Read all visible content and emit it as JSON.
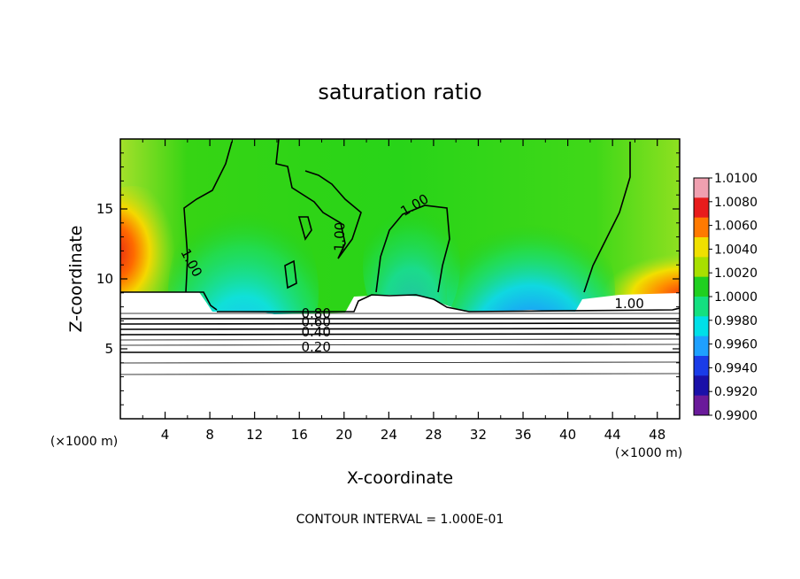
{
  "chart_data": {
    "type": "heatmap",
    "title": "saturation ratio",
    "xlabel": "X-coordinate",
    "ylabel": "Z-coordinate",
    "x_unit_left": "(×1000 m)",
    "x_unit_right": "(×1000 m)",
    "xlim": [
      0,
      50
    ],
    "ylim": [
      0,
      20
    ],
    "x_ticks": [
      4,
      8,
      12,
      16,
      20,
      24,
      28,
      32,
      36,
      40,
      44,
      48
    ],
    "x_tick_labels": [
      "4",
      "8",
      "12",
      "16",
      "20",
      "24",
      "28",
      "32",
      "36",
      "40",
      "44",
      "48"
    ],
    "y_ticks": [
      5,
      10,
      15
    ],
    "y_tick_labels": [
      "5",
      "10",
      "15"
    ],
    "colorbar": {
      "min": 0.99,
      "max": 1.01,
      "labels": [
        "1.0100",
        "1.0080",
        "1.0060",
        "1.0040",
        "1.0020",
        "1.0000",
        "0.9980",
        "0.9960",
        "0.9940",
        "0.9920",
        "0.9900"
      ],
      "colors": [
        "#f0a0b0",
        "#e81c1c",
        "#ff7a00",
        "#f0e000",
        "#a8e000",
        "#20d020",
        "#14e080",
        "#00e0e8",
        "#1ea0ff",
        "#1a3ce8",
        "#1a10a8",
        "#6a1a9a"
      ]
    },
    "contour_labels": [
      {
        "text": "1.00",
        "x": 6.0,
        "y": 11.0,
        "rotate": 62
      },
      {
        "text": "1.00",
        "x": 20.0,
        "y": 13.0,
        "rotate": -88
      },
      {
        "text": "1.00",
        "x": 26.5,
        "y": 15.0,
        "rotate": -30
      },
      {
        "text": "1.00",
        "x": 45.5,
        "y": 7.9,
        "rotate": 0
      },
      {
        "text": "0.80",
        "x": 17.5,
        "y": 7.2,
        "rotate": 0
      },
      {
        "text": "0.60",
        "x": 17.5,
        "y": 6.6,
        "rotate": 0
      },
      {
        "text": "0.40",
        "x": 17.5,
        "y": 5.9,
        "rotate": 0
      },
      {
        "text": "0.20",
        "x": 17.5,
        "y": 4.8,
        "rotate": 0
      }
    ],
    "footer": "CONTOUR INTERVAL = 1.000E-01"
  }
}
